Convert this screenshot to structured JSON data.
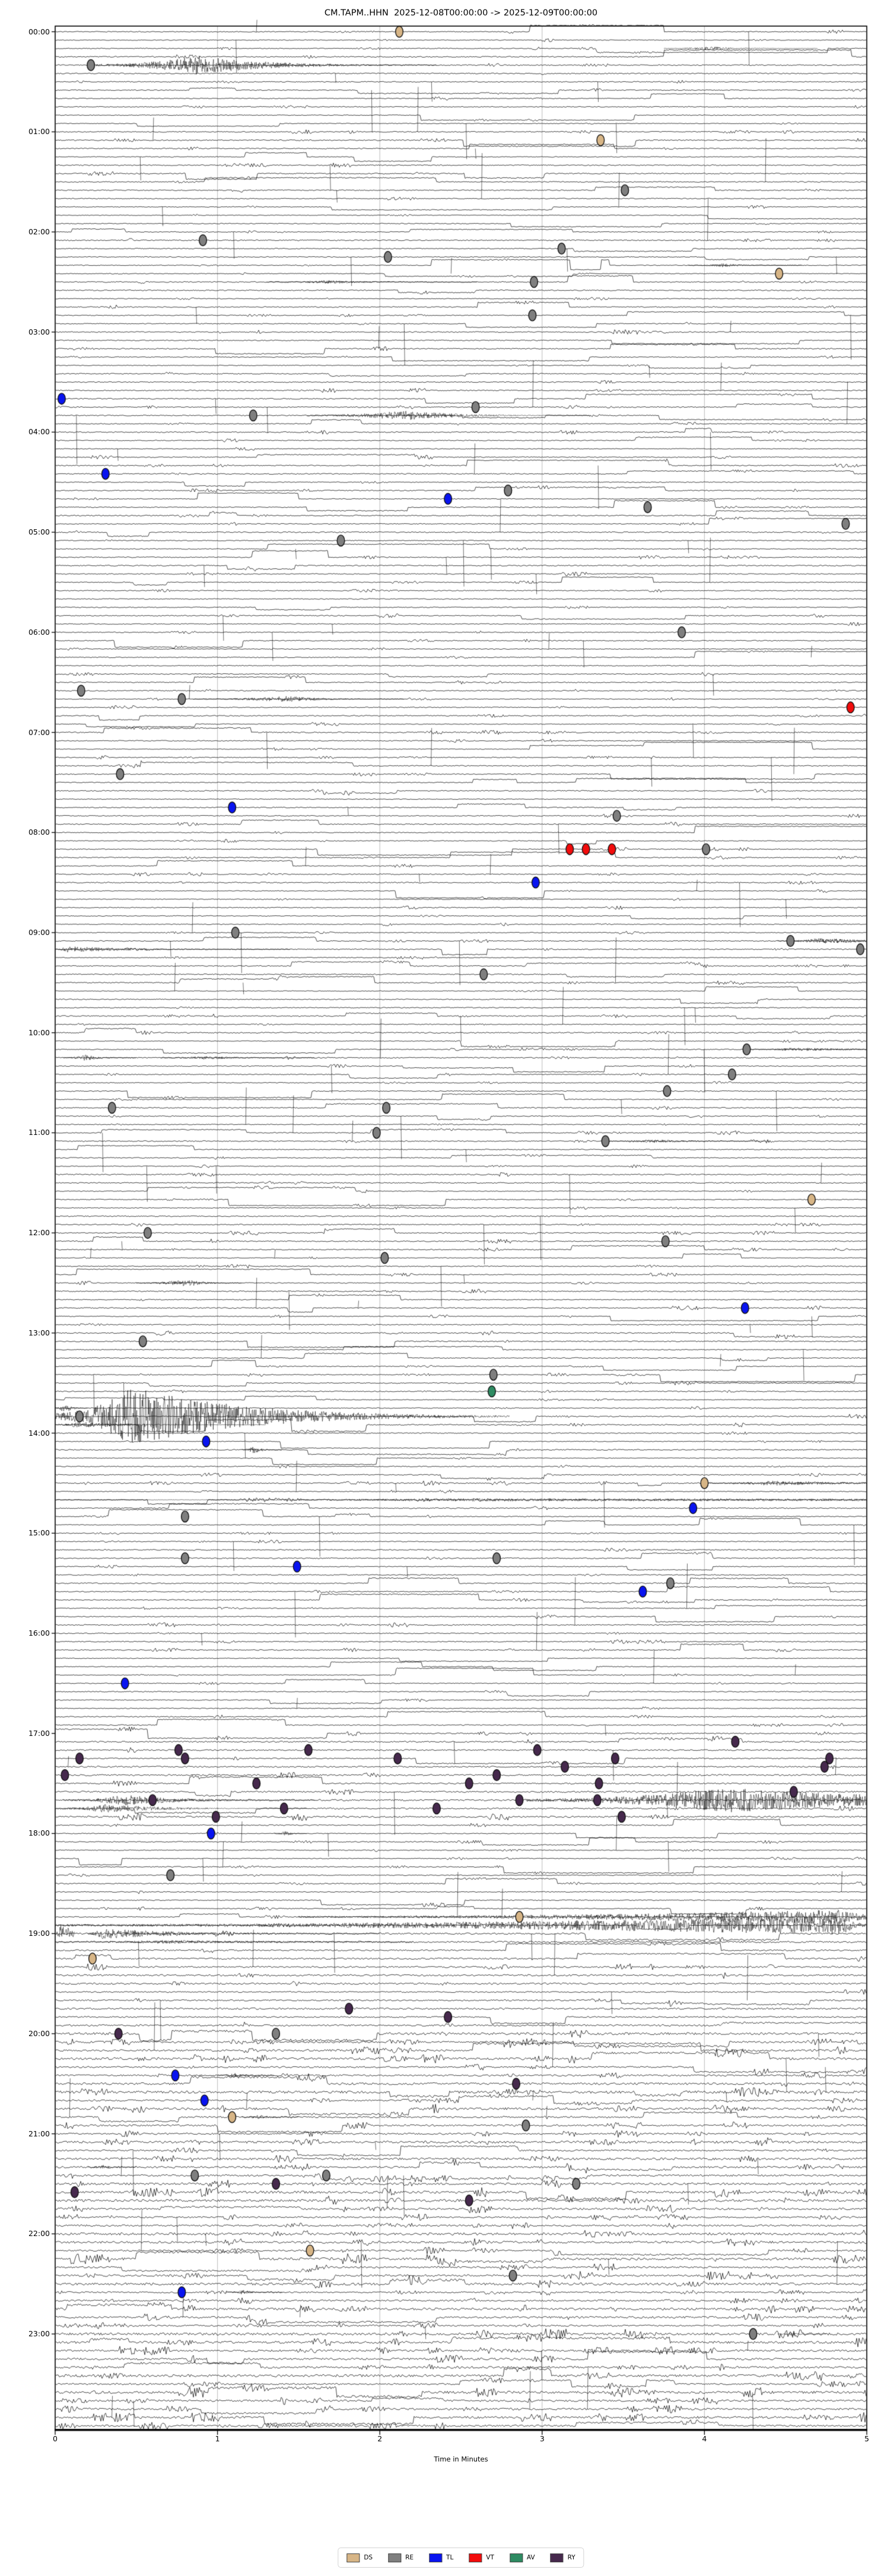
{
  "title": "CM.TAPM..HHN  2025-12-08T00:00:00 -> 2025-12-09T00:00:00",
  "xlabel": "Time in Minutes",
  "legend": [
    {
      "label": "DS",
      "color": "#d7b586"
    },
    {
      "label": "RE",
      "color": "#7f7f7f"
    },
    {
      "label": "TL",
      "color": "#0914f0"
    },
    {
      "label": "VT",
      "color": "#f20c0c"
    },
    {
      "label": "AV",
      "color": "#2e8b62"
    },
    {
      "label": "RY",
      "color": "#46294d"
    }
  ],
  "chart_data": {
    "type": "helicorder-dayplot",
    "station": "CM.TAPM..HHN",
    "time_start": "2025-12-08T00:00:00",
    "time_end": "2025-12-09T00:00:00",
    "x_axis": {
      "label": "Time in Minutes",
      "range": [
        0,
        5
      ],
      "ticks": [
        "0",
        "1",
        "2",
        "3",
        "4",
        "5"
      ]
    },
    "y_axis": {
      "rows": 288,
      "row_minutes": 5,
      "hour_labels": [
        "00:00",
        "01:00",
        "02:00",
        "03:00",
        "04:00",
        "05:00",
        "06:00",
        "07:00",
        "08:00",
        "09:00",
        "10:00",
        "11:00",
        "12:00",
        "13:00",
        "14:00",
        "15:00",
        "16:00",
        "17:00",
        "18:00",
        "19:00",
        "20:00",
        "21:00",
        "22:00",
        "23:00"
      ]
    },
    "marker_classes": {
      "DS": "#d7b586",
      "RE": "#7f7f7f",
      "TL": "#0914f0",
      "VT": "#f20c0c",
      "AV": "#2e8b62",
      "RY": "#46294d"
    },
    "markers": [
      {
        "t": "00:00",
        "m": 2.12,
        "c": "DS"
      },
      {
        "t": "00:20",
        "m": 0.22,
        "c": "RE"
      },
      {
        "t": "01:05",
        "m": 3.36,
        "c": "DS"
      },
      {
        "t": "01:35",
        "m": 3.51,
        "c": "RE"
      },
      {
        "t": "02:05",
        "m": 0.91,
        "c": "RE"
      },
      {
        "t": "02:10",
        "m": 3.12,
        "c": "RE"
      },
      {
        "t": "02:15",
        "m": 2.05,
        "c": "RE"
      },
      {
        "t": "02:25",
        "m": 4.46,
        "c": "DS"
      },
      {
        "t": "02:30",
        "m": 2.95,
        "c": "RE"
      },
      {
        "t": "02:50",
        "m": 2.94,
        "c": "RE"
      },
      {
        "t": "03:40",
        "m": 0.04,
        "c": "TL"
      },
      {
        "t": "03:45",
        "m": 2.59,
        "c": "RE"
      },
      {
        "t": "03:50",
        "m": 1.22,
        "c": "RE"
      },
      {
        "t": "04:25",
        "m": 0.31,
        "c": "TL"
      },
      {
        "t": "04:35",
        "m": 2.79,
        "c": "RE"
      },
      {
        "t": "04:40",
        "m": 2.42,
        "c": "TL"
      },
      {
        "t": "04:45",
        "m": 3.65,
        "c": "RE"
      },
      {
        "t": "04:55",
        "m": 4.87,
        "c": "RE"
      },
      {
        "t": "05:05",
        "m": 1.76,
        "c": "RE"
      },
      {
        "t": "06:00",
        "m": 3.86,
        "c": "RE"
      },
      {
        "t": "06:35",
        "m": 0.16,
        "c": "RE"
      },
      {
        "t": "06:40",
        "m": 0.78,
        "c": "RE"
      },
      {
        "t": "06:45",
        "m": 4.9,
        "c": "VT"
      },
      {
        "t": "07:25",
        "m": 0.4,
        "c": "RE"
      },
      {
        "t": "07:45",
        "m": 1.09,
        "c": "TL"
      },
      {
        "t": "07:50",
        "m": 3.46,
        "c": "RE"
      },
      {
        "t": "08:10",
        "m": 3.17,
        "c": "VT"
      },
      {
        "t": "08:10",
        "m": 3.27,
        "c": "VT"
      },
      {
        "t": "08:10",
        "m": 3.43,
        "c": "VT"
      },
      {
        "t": "08:10",
        "m": 4.01,
        "c": "RE"
      },
      {
        "t": "08:30",
        "m": 2.96,
        "c": "TL"
      },
      {
        "t": "09:00",
        "m": 1.11,
        "c": "RE"
      },
      {
        "t": "09:05",
        "m": 4.53,
        "c": "RE"
      },
      {
        "t": "09:10",
        "m": 4.96,
        "c": "RE"
      },
      {
        "t": "09:25",
        "m": 2.64,
        "c": "RE"
      },
      {
        "t": "10:10",
        "m": 4.26,
        "c": "RE"
      },
      {
        "t": "10:25",
        "m": 4.17,
        "c": "RE"
      },
      {
        "t": "10:35",
        "m": 3.77,
        "c": "RE"
      },
      {
        "t": "10:45",
        "m": 0.35,
        "c": "RE"
      },
      {
        "t": "10:45",
        "m": 2.04,
        "c": "RE"
      },
      {
        "t": "11:00",
        "m": 1.98,
        "c": "RE"
      },
      {
        "t": "11:05",
        "m": 3.39,
        "c": "RE"
      },
      {
        "t": "11:40",
        "m": 4.66,
        "c": "DS"
      },
      {
        "t": "12:00",
        "m": 0.57,
        "c": "RE"
      },
      {
        "t": "12:05",
        "m": 3.76,
        "c": "RE"
      },
      {
        "t": "12:15",
        "m": 2.03,
        "c": "RE"
      },
      {
        "t": "12:45",
        "m": 4.25,
        "c": "TL"
      },
      {
        "t": "13:05",
        "m": 0.54,
        "c": "RE"
      },
      {
        "t": "13:25",
        "m": 2.7,
        "c": "RE"
      },
      {
        "t": "13:35",
        "m": 2.69,
        "c": "AV"
      },
      {
        "t": "13:50",
        "m": 0.15,
        "c": "RE"
      },
      {
        "t": "14:05",
        "m": 0.93,
        "c": "TL"
      },
      {
        "t": "14:30",
        "m": 4.0,
        "c": "DS"
      },
      {
        "t": "14:45",
        "m": 3.93,
        "c": "TL"
      },
      {
        "t": "14:50",
        "m": 0.8,
        "c": "RE"
      },
      {
        "t": "15:15",
        "m": 0.8,
        "c": "RE"
      },
      {
        "t": "15:15",
        "m": 2.72,
        "c": "RE"
      },
      {
        "t": "15:20",
        "m": 1.49,
        "c": "TL"
      },
      {
        "t": "15:30",
        "m": 3.79,
        "c": "RE"
      },
      {
        "t": "15:35",
        "m": 3.62,
        "c": "TL"
      },
      {
        "t": "16:30",
        "m": 0.43,
        "c": "TL"
      },
      {
        "t": "17:05",
        "m": 4.19,
        "c": "RY"
      },
      {
        "t": "17:10",
        "m": 0.76,
        "c": "RY"
      },
      {
        "t": "17:10",
        "m": 1.56,
        "c": "RY"
      },
      {
        "t": "17:10",
        "m": 2.97,
        "c": "RY"
      },
      {
        "t": "17:15",
        "m": 0.15,
        "c": "RY"
      },
      {
        "t": "17:15",
        "m": 0.8,
        "c": "RY"
      },
      {
        "t": "17:15",
        "m": 2.11,
        "c": "RY"
      },
      {
        "t": "17:15",
        "m": 3.45,
        "c": "RY"
      },
      {
        "t": "17:15",
        "m": 4.77,
        "c": "RY"
      },
      {
        "t": "17:20",
        "m": 3.14,
        "c": "RY"
      },
      {
        "t": "17:20",
        "m": 4.74,
        "c": "RY"
      },
      {
        "t": "17:25",
        "m": 0.06,
        "c": "RY"
      },
      {
        "t": "17:25",
        "m": 2.72,
        "c": "RY"
      },
      {
        "t": "17:30",
        "m": 1.24,
        "c": "RY"
      },
      {
        "t": "17:30",
        "m": 2.55,
        "c": "RY"
      },
      {
        "t": "17:30",
        "m": 3.35,
        "c": "RY"
      },
      {
        "t": "17:35",
        "m": 4.55,
        "c": "RY"
      },
      {
        "t": "17:40",
        "m": 0.6,
        "c": "RY"
      },
      {
        "t": "17:40",
        "m": 2.86,
        "c": "RY"
      },
      {
        "t": "17:40",
        "m": 3.34,
        "c": "RY"
      },
      {
        "t": "17:45",
        "m": 1.41,
        "c": "RY"
      },
      {
        "t": "17:45",
        "m": 2.35,
        "c": "RY"
      },
      {
        "t": "17:50",
        "m": 0.99,
        "c": "RY"
      },
      {
        "t": "17:50",
        "m": 3.49,
        "c": "RY"
      },
      {
        "t": "18:00",
        "m": 0.96,
        "c": "TL"
      },
      {
        "t": "18:25",
        "m": 0.71,
        "c": "RE"
      },
      {
        "t": "18:50",
        "m": 2.86,
        "c": "DS"
      },
      {
        "t": "19:15",
        "m": 0.23,
        "c": "DS"
      },
      {
        "t": "19:45",
        "m": 1.81,
        "c": "RY"
      },
      {
        "t": "19:50",
        "m": 2.42,
        "c": "RY"
      },
      {
        "t": "20:00",
        "m": 0.39,
        "c": "RY"
      },
      {
        "t": "20:00",
        "m": 1.36,
        "c": "RE"
      },
      {
        "t": "20:25",
        "m": 0.74,
        "c": "TL"
      },
      {
        "t": "20:30",
        "m": 2.84,
        "c": "RY"
      },
      {
        "t": "20:40",
        "m": 0.92,
        "c": "TL"
      },
      {
        "t": "20:50",
        "m": 1.09,
        "c": "DS"
      },
      {
        "t": "20:55",
        "m": 2.9,
        "c": "RE"
      },
      {
        "t": "21:25",
        "m": 0.86,
        "c": "RE"
      },
      {
        "t": "21:25",
        "m": 1.67,
        "c": "RE"
      },
      {
        "t": "21:30",
        "m": 1.36,
        "c": "RY"
      },
      {
        "t": "21:30",
        "m": 3.21,
        "c": "RE"
      },
      {
        "t": "21:35",
        "m": 0.12,
        "c": "RY"
      },
      {
        "t": "21:40",
        "m": 2.55,
        "c": "RY"
      },
      {
        "t": "22:10",
        "m": 1.57,
        "c": "DS"
      },
      {
        "t": "22:25",
        "m": 2.82,
        "c": "RE"
      },
      {
        "t": "22:35",
        "m": 0.78,
        "c": "TL"
      },
      {
        "t": "23:00",
        "m": 4.3,
        "c": "RE"
      }
    ],
    "events": [
      {
        "t": "00:10",
        "m0": 3.75,
        "m1": 4.7,
        "amp": 3
      },
      {
        "t": "00:20",
        "m0": 0.25,
        "m1": 2.35,
        "amp": 16,
        "p": 0.3
      },
      {
        "t": "02:20",
        "m0": 3.9,
        "m1": 4.6,
        "amp": 3
      },
      {
        "t": "02:30",
        "m0": 1.3,
        "m1": 2.6,
        "amp": 3
      },
      {
        "t": "03:50",
        "m0": 1.55,
        "m1": 3.3,
        "amp": 8,
        "p": 0.35
      },
      {
        "t": "06:40",
        "m0": 0.85,
        "m1": 2.15,
        "amp": 5,
        "p": 0.45
      },
      {
        "t": "09:05",
        "m0": 4.45,
        "m1": 5.0,
        "amp": 5,
        "p": 0.5,
        "d": 1
      },
      {
        "t": "09:10",
        "m0": 0.0,
        "m1": 1.45,
        "amp": 5,
        "p": 0.05
      },
      {
        "t": "10:10",
        "m0": 4.25,
        "m1": 5.0,
        "amp": 3,
        "p": 0.4,
        "d": 1
      },
      {
        "t": "10:15",
        "m0": 0.05,
        "m1": 0.5,
        "amp": 5
      },
      {
        "t": "10:15",
        "m0": 0.65,
        "m1": 1.6,
        "amp": 3
      },
      {
        "t": "11:05",
        "m0": 3.4,
        "m1": 4.4,
        "amp": 3
      },
      {
        "t": "12:30",
        "m0": 0.5,
        "m1": 1.15,
        "amp": 6,
        "p": 0.5
      },
      {
        "t": "13:45",
        "m0": 0.0,
        "m1": 0.2,
        "amp": 9
      },
      {
        "t": "13:50",
        "m0": 0.0,
        "m1": 2.8,
        "amp": 50,
        "p": 0.17
      },
      {
        "t": "13:55",
        "m0": 0.0,
        "m1": 1.3,
        "amp": 5,
        "p": 0.1
      },
      {
        "t": "14:10",
        "m0": 1.15,
        "m1": 1.4,
        "amp": 6
      },
      {
        "t": "14:30",
        "m0": 4.0,
        "m1": 5.0,
        "amp": 4,
        "p": 0.4,
        "d": 1
      },
      {
        "t": "14:40",
        "m0": 0.0,
        "m1": 5.0,
        "amp": 2.5,
        "p": 0.5,
        "d": 0.3
      },
      {
        "t": "17:40",
        "m0": 0.05,
        "m1": 1.6,
        "amp": 9,
        "p": 0.25
      },
      {
        "t": "17:40",
        "m0": 2.9,
        "m1": 5.0,
        "amp": 21,
        "p": 0.6,
        "d": 0.8
      },
      {
        "t": "17:45",
        "m0": 0.0,
        "m1": 1.55,
        "amp": 7,
        "p": 0.2
      },
      {
        "t": "18:00",
        "m0": 1.35,
        "m1": 1.55,
        "amp": 5
      },
      {
        "t": "18:50",
        "m0": 1.5,
        "m1": 5.0,
        "amp": 12,
        "p": 0.95,
        "d": 1
      },
      {
        "t": "18:55",
        "m0": 0.0,
        "m1": 5.0,
        "amp": 16,
        "p": 0.97,
        "d": 2
      },
      {
        "t": "19:00",
        "m0": 0.0,
        "m1": 0.12,
        "amp": 16,
        "p": 0.3,
        "d": 1
      },
      {
        "t": "19:00",
        "m0": 0.2,
        "m1": 2.0,
        "amp": 9,
        "p": 0.05
      },
      {
        "t": "19:05",
        "m0": 0.0,
        "m1": 2.2,
        "amp": 3,
        "p": 0.3,
        "d": 1.5
      },
      {
        "t": "20:25",
        "m0": 1.0,
        "m1": 1.35,
        "amp": 4
      },
      {
        "t": "20:50",
        "m0": 1.15,
        "m1": 1.5,
        "amp": 4
      },
      {
        "t": "21:20",
        "m0": 0.2,
        "m1": 0.5,
        "amp": 4
      },
      {
        "t": "22:35",
        "m0": 1.05,
        "m1": 1.4,
        "amp": 4
      },
      {
        "t": "23:00",
        "m0": 4.45,
        "m1": 4.75,
        "amp": 3
      }
    ]
  }
}
